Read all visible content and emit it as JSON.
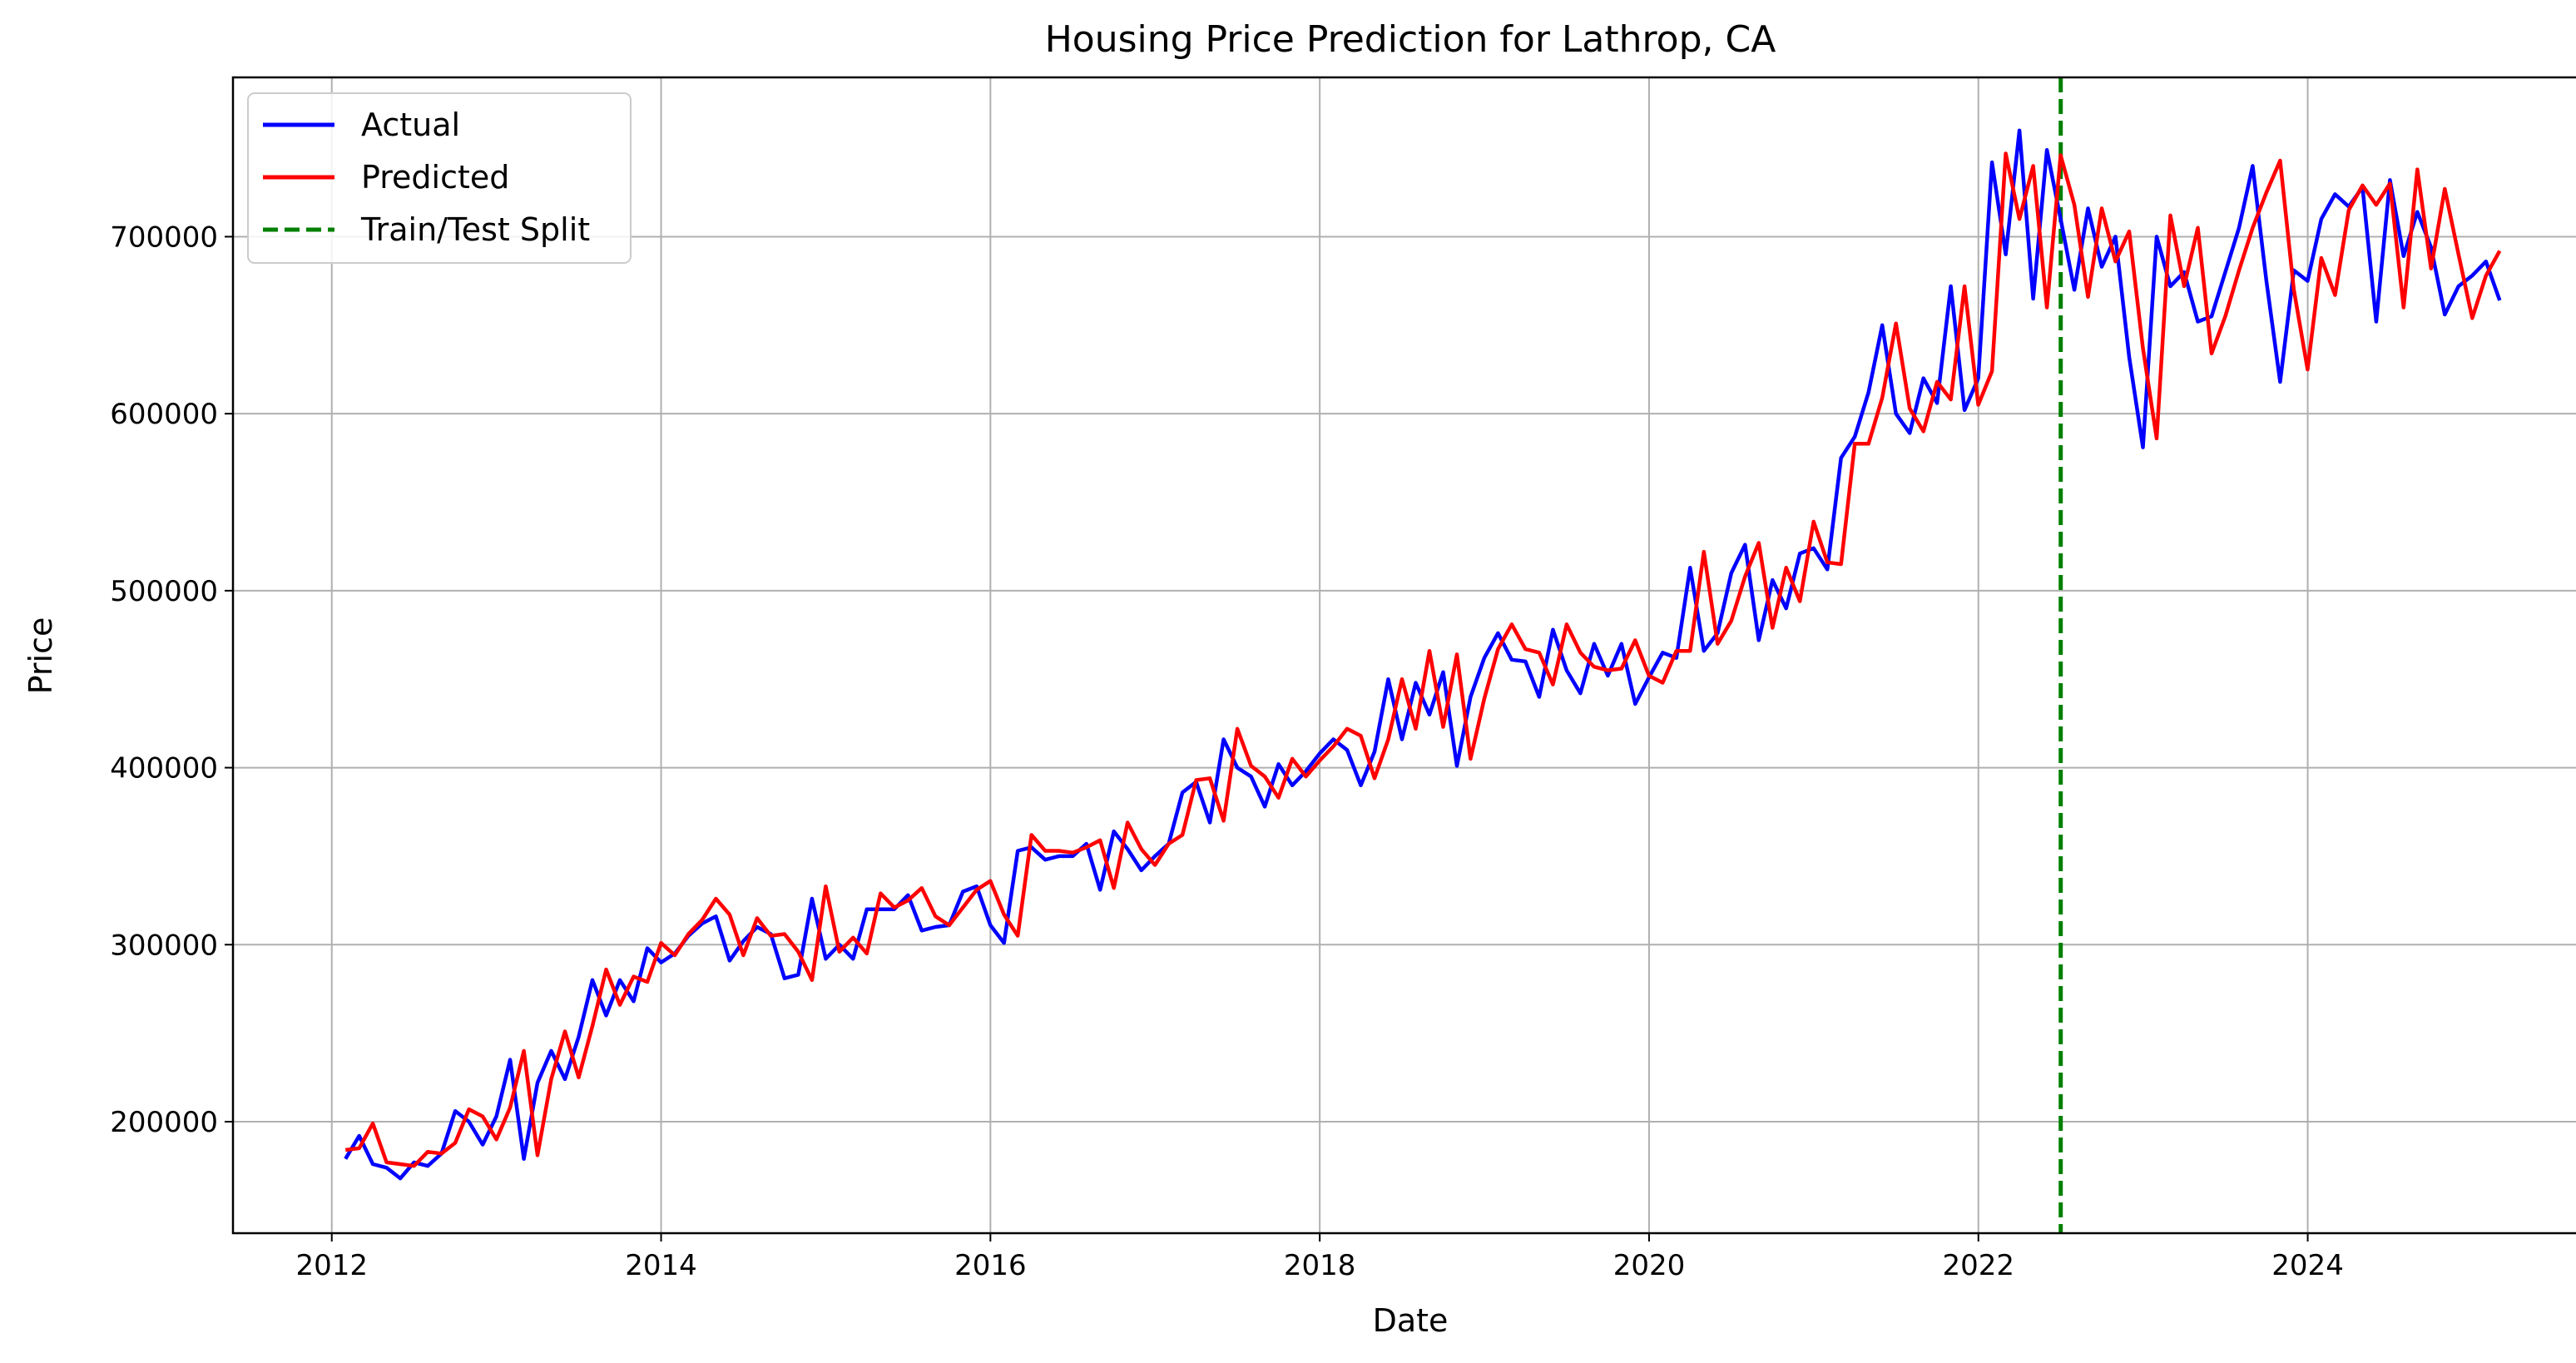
{
  "chart_data": {
    "type": "line",
    "title": "Housing Price Prediction for Lathrop, CA",
    "xlabel": "Date",
    "ylabel": "Price",
    "xlim": [
      2011.4,
      2025.7
    ],
    "ylim": [
      137000,
      790000
    ],
    "grid": true,
    "legend_position": "top-left",
    "x_ticks": [
      2012,
      2014,
      2016,
      2018,
      2020,
      2022,
      2024
    ],
    "x_tick_labels": [
      "2012",
      "2014",
      "2016",
      "2018",
      "2020",
      "2022",
      "2024"
    ],
    "y_ticks": [
      200000,
      300000,
      400000,
      500000,
      600000,
      700000
    ],
    "y_tick_labels": [
      "200000",
      "300000",
      "400000",
      "500000",
      "600000",
      "700000"
    ],
    "split": {
      "name": "Train/Test Split",
      "x": 2022.5,
      "color": "#008000",
      "style": "dashed"
    },
    "series": [
      {
        "name": "Actual",
        "color": "#0000ff",
        "x_start": 2012.083,
        "x_step": 0.08333,
        "values": [
          179000,
          192000,
          176000,
          174000,
          168000,
          177000,
          175000,
          182000,
          206000,
          200000,
          187000,
          203000,
          235000,
          179000,
          222000,
          240000,
          224000,
          248000,
          280000,
          260000,
          280000,
          268000,
          298000,
          290000,
          295000,
          305000,
          312000,
          316000,
          291000,
          302000,
          310000,
          306000,
          281000,
          283000,
          326000,
          292000,
          300000,
          292000,
          320000,
          320000,
          320000,
          328000,
          308000,
          310000,
          311000,
          330000,
          333000,
          311000,
          301000,
          353000,
          355000,
          348000,
          350000,
          350000,
          357000,
          331000,
          364000,
          354000,
          342000,
          350000,
          357000,
          386000,
          392000,
          369000,
          416000,
          400000,
          395000,
          378000,
          402000,
          390000,
          398000,
          408000,
          416000,
          410000,
          390000,
          409000,
          450000,
          416000,
          448000,
          430000,
          454000,
          401000,
          440000,
          462000,
          476000,
          461000,
          460000,
          440000,
          478000,
          455000,
          442000,
          470000,
          452000,
          470000,
          436000,
          451000,
          465000,
          462000,
          513000,
          466000,
          476000,
          510000,
          526000,
          472000,
          506000,
          490000,
          521000,
          524000,
          512000,
          575000,
          587000,
          612000,
          650000,
          600000,
          589000,
          620000,
          606000,
          672000,
          602000,
          620000,
          742000,
          690000,
          760000,
          665000,
          749000,
          710000,
          670000,
          716000,
          683000,
          700000,
          632000,
          581000,
          700000,
          672000,
          680000,
          652000,
          655000,
          680000,
          705000,
          740000,
          675000,
          618000,
          681000,
          675000,
          710000,
          724000,
          717000,
          728000,
          652000,
          732000,
          689000,
          714000,
          694000,
          656000,
          672000,
          678000,
          686000,
          664000
        ]
      },
      {
        "name": "Predicted",
        "color": "#ff0000",
        "x_start": 2012.083,
        "x_step": 0.08333,
        "values": [
          184000,
          185000,
          199000,
          177000,
          176000,
          175000,
          183000,
          182000,
          188000,
          207000,
          203000,
          190000,
          208000,
          240000,
          181000,
          224000,
          251000,
          225000,
          254000,
          286000,
          266000,
          282000,
          279000,
          301000,
          294000,
          306000,
          314000,
          326000,
          317000,
          294000,
          315000,
          305000,
          306000,
          296000,
          280000,
          333000,
          296000,
          304000,
          295000,
          329000,
          321000,
          325000,
          332000,
          316000,
          311000,
          321000,
          331000,
          336000,
          317000,
          305000,
          362000,
          353000,
          353000,
          352000,
          355000,
          359000,
          332000,
          369000,
          354000,
          345000,
          357000,
          362000,
          393000,
          394000,
          370000,
          422000,
          401000,
          395000,
          383000,
          405000,
          395000,
          404000,
          412000,
          422000,
          418000,
          394000,
          416000,
          450000,
          422000,
          466000,
          423000,
          464000,
          405000,
          439000,
          467000,
          481000,
          467000,
          465000,
          447000,
          481000,
          465000,
          457000,
          455000,
          456000,
          472000,
          452000,
          448000,
          466000,
          466000,
          522000,
          470000,
          483000,
          508000,
          527000,
          479000,
          513000,
          494000,
          539000,
          516000,
          515000,
          583000,
          583000,
          609000,
          651000,
          603000,
          590000,
          618000,
          608000,
          672000,
          605000,
          624000,
          747000,
          710000,
          740000,
          660000,
          746000,
          718000,
          666000,
          716000,
          686000,
          703000,
          637000,
          586000,
          712000,
          672000,
          705000,
          634000,
          655000,
          681000,
          705000,
          725000,
          743000,
          670000,
          625000,
          688000,
          667000,
          715000,
          729000,
          718000,
          730000,
          660000,
          738000,
          682000,
          727000,
          690000,
          654000,
          678000,
          692000
        ]
      }
    ]
  }
}
